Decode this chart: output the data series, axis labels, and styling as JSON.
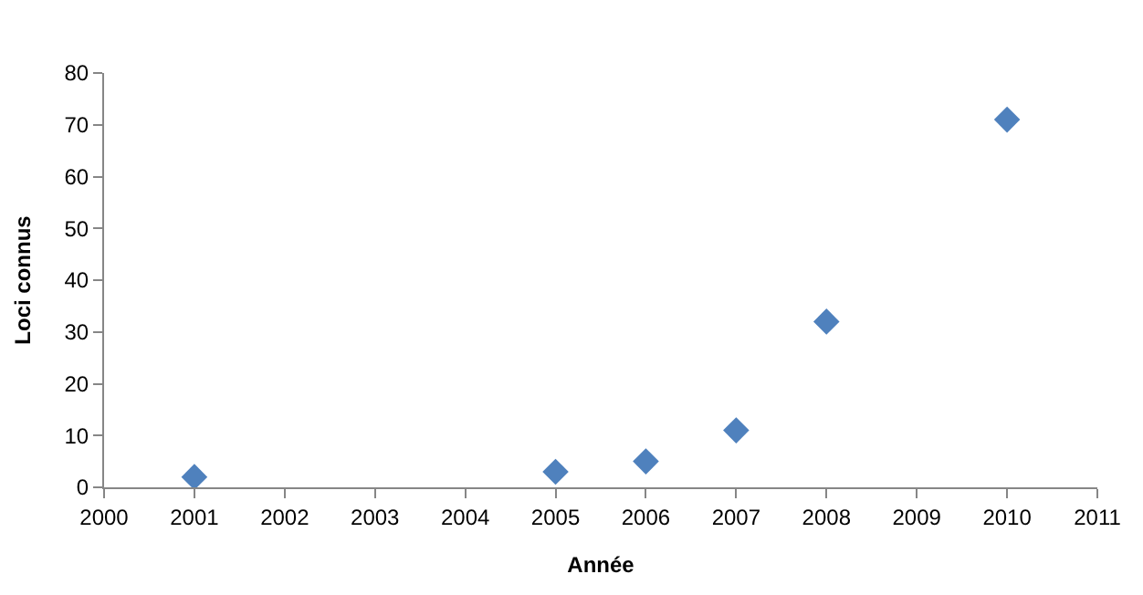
{
  "chart_data": {
    "type": "scatter",
    "xlabel": "Année",
    "ylabel": "Loci connus",
    "x": [
      2001,
      2005,
      2006,
      2007,
      2008,
      2010
    ],
    "values": [
      2,
      3,
      5,
      11,
      32,
      71
    ],
    "color": "#4f81bd",
    "marker": "diamond",
    "xlim": [
      2000,
      2011
    ],
    "xticks": [
      2000,
      2001,
      2002,
      2003,
      2004,
      2005,
      2006,
      2007,
      2008,
      2009,
      2010,
      2011
    ],
    "ylim": [
      0,
      80
    ],
    "yticks": [
      0,
      10,
      20,
      30,
      40,
      50,
      60,
      70,
      80
    ]
  }
}
